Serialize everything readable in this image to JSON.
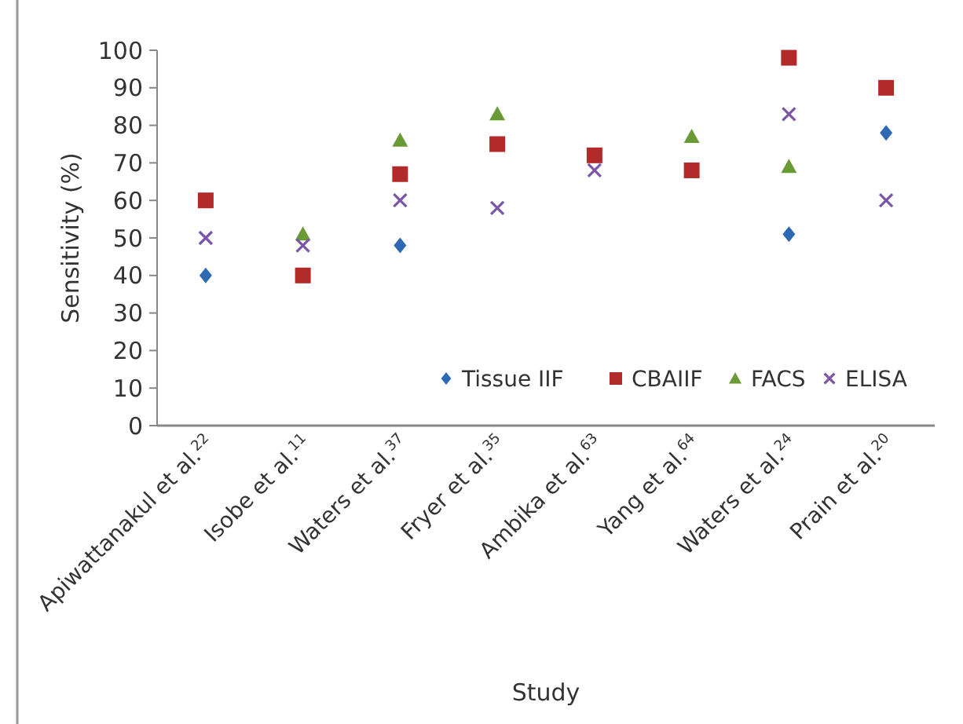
{
  "chart_data": {
    "type": "scatter",
    "xlabel": "Study",
    "ylabel": "Sensitivity (%)",
    "categories": [
      "Apiwattanakul et al.$^{22}$",
      "Isobe et al.$^{11}$",
      "Waters et al.$^{37}$",
      "Fryer et al.$^{35}$",
      "Ambika et al.$^{63}$",
      "Yang et al.$^{64}$",
      "Waters et al.$^{24}$",
      "Prain et al.$^{20}$"
    ],
    "series": [
      {
        "name": "Tissue IIF",
        "color": "#2e6ab3",
        "marker": "diamond",
        "values": [
          40,
          null,
          48,
          null,
          null,
          null,
          51,
          78
        ]
      },
      {
        "name": "CBAIIF",
        "color": "#b22a2a",
        "marker": "square",
        "values": [
          60,
          40,
          67,
          75,
          72,
          68,
          98,
          90
        ]
      },
      {
        "name": "FACS",
        "color": "#6a9a36",
        "marker": "triangle",
        "values": [
          null,
          51,
          76,
          83,
          null,
          77,
          69,
          null
        ]
      },
      {
        "name": "ELISA",
        "color": "#7a55a8",
        "marker": "cross",
        "values": [
          50,
          48,
          60,
          58,
          68,
          null,
          83,
          60
        ]
      }
    ],
    "ylim": [
      0,
      100
    ],
    "yticks": [
      0,
      10,
      20,
      30,
      40,
      50,
      60,
      70,
      80,
      90,
      100
    ],
    "grid": false,
    "legend": "bottom right"
  }
}
